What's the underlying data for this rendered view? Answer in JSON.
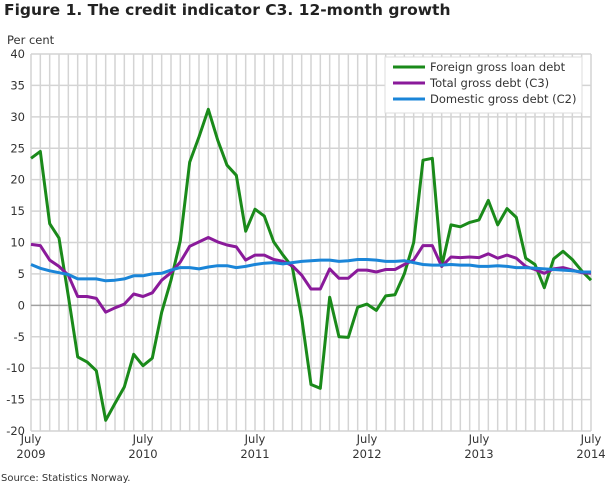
{
  "chart_data": {
    "type": "line",
    "title": "Figure 1. The credit indicator C3. 12-month growth",
    "ylabel": "Per cent",
    "xlabel": "",
    "ylim": [
      -20,
      40
    ],
    "yticks": [
      -20,
      -15,
      -10,
      -5,
      0,
      5,
      10,
      15,
      20,
      25,
      30,
      35,
      40
    ],
    "x_range": [
      "2009-07",
      "2014-07"
    ],
    "x_frequency": "monthly",
    "xtick_labels": [
      {
        "month": "July",
        "year": "2009"
      },
      {
        "month": "July",
        "year": "2010"
      },
      {
        "month": "July",
        "year": "2011"
      },
      {
        "month": "July",
        "year": "2012"
      },
      {
        "month": "July",
        "year": "2013"
      },
      {
        "month": "July",
        "year": "2014"
      }
    ],
    "grid": true,
    "legend_placement": "top-right",
    "series": [
      {
        "name": "Foreign gross loan debt",
        "color": "#1a8a1a",
        "values": [
          23.4,
          24.5,
          13,
          10.7,
          1.5,
          -8.2,
          -9,
          -10.4,
          -18.3,
          -15.6,
          -13,
          -7.8,
          -9.6,
          -8.4,
          -1.1,
          4,
          10.3,
          22.8,
          26.8,
          31.2,
          26.3,
          22.3,
          20.7,
          11.8,
          15.3,
          14.2,
          10.1,
          8,
          6.1,
          -2,
          -12.6,
          -13.2,
          1.3,
          -5,
          -5.1,
          -0.3,
          0.2,
          -0.8,
          1.5,
          1.7,
          5,
          10,
          23.1,
          23.4,
          6.2,
          12.8,
          12.5,
          13.2,
          13.6,
          16.7,
          12.8,
          15.4,
          14,
          7.5,
          6.5,
          2.8,
          7.4,
          8.6,
          7.3,
          5.5,
          4
        ]
      },
      {
        "name": "Total gross debt (C3)",
        "color": "#8a1a9a",
        "values": [
          9.7,
          9.5,
          7.2,
          6.2,
          4.8,
          1.4,
          1.4,
          1.1,
          -1.1,
          -0.4,
          0.2,
          1.8,
          1.4,
          2,
          4,
          5.2,
          6.9,
          9.4,
          10.1,
          10.8,
          10.1,
          9.6,
          9.3,
          7.2,
          8,
          8,
          7.3,
          7,
          6.3,
          4.8,
          2.6,
          2.6,
          5.8,
          4.3,
          4.3,
          5.6,
          5.6,
          5.3,
          5.7,
          5.7,
          6.5,
          7.2,
          9.5,
          9.5,
          6.2,
          7.7,
          7.6,
          7.7,
          7.6,
          8.2,
          7.5,
          8,
          7.5,
          6.2,
          5.7,
          5.1,
          5.8,
          6,
          5.6,
          5.2,
          5.1
        ]
      },
      {
        "name": "Domestic gross debt (C2)",
        "color": "#1a85d8",
        "values": [
          6.5,
          5.9,
          5.5,
          5.2,
          4.9,
          4.2,
          4.2,
          4.2,
          3.9,
          4,
          4.2,
          4.7,
          4.7,
          5,
          5.1,
          5.6,
          6,
          6,
          5.8,
          6.1,
          6.3,
          6.3,
          6,
          6.2,
          6.5,
          6.7,
          6.8,
          6.6,
          6.8,
          7,
          7.1,
          7.2,
          7.2,
          7,
          7.1,
          7.3,
          7.3,
          7.2,
          7,
          7,
          7.1,
          6.8,
          6.5,
          6.4,
          6.4,
          6.5,
          6.4,
          6.4,
          6.2,
          6.2,
          6.3,
          6.2,
          6,
          6,
          5.9,
          5.8,
          5.7,
          5.6,
          5.5,
          5.3,
          5.3
        ]
      }
    ]
  },
  "source": "Source: Statistics Norway."
}
